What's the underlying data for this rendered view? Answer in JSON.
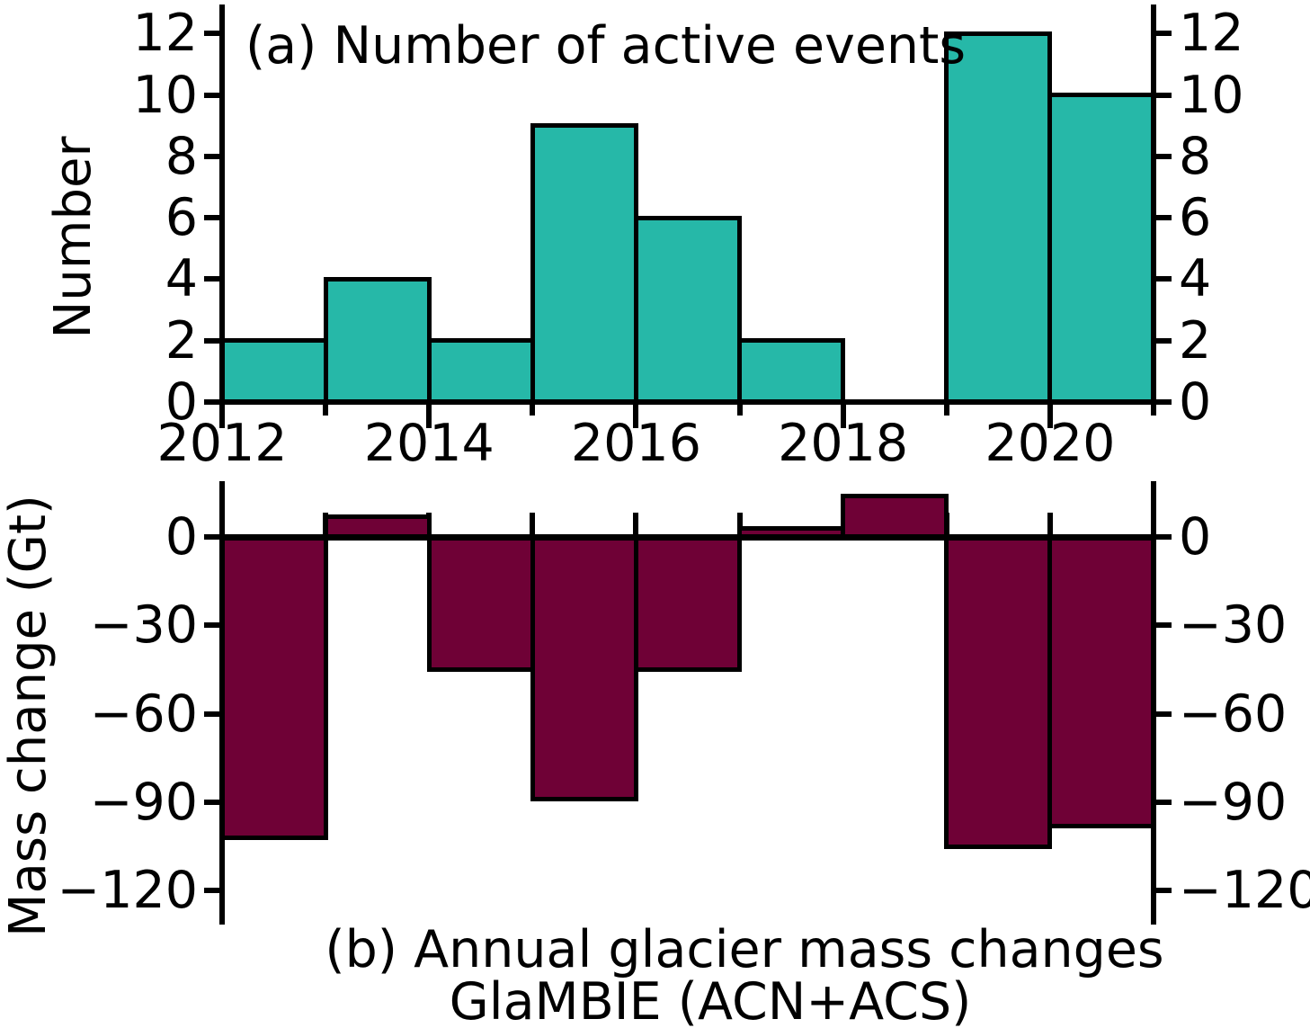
{
  "figure": {
    "background_color": "#ffffff",
    "text_color": "#000000"
  },
  "chart_data": [
    {
      "id": "panel-a",
      "type": "bar",
      "title": "(a) Number of active events",
      "ylabel": "Number",
      "bar_color": "#26b8a8",
      "bar_edge_color": "#000000",
      "categories": [
        2012,
        2013,
        2014,
        2015,
        2016,
        2017,
        2018,
        2019,
        2020
      ],
      "values": [
        2,
        4,
        2,
        9,
        6,
        2,
        0,
        12,
        10
      ],
      "bar_width_years": 1,
      "xlim": [
        2012,
        2021
      ],
      "ylim": [
        0,
        13
      ],
      "yticks": [
        0,
        2,
        4,
        6,
        8,
        10,
        12
      ],
      "ytick_labels": [
        "0",
        "2",
        "4",
        "6",
        "8",
        "10",
        "12"
      ],
      "ytick_sides": "both",
      "xtick_major_years": [
        2012,
        2014,
        2016,
        2018,
        2020
      ],
      "xtick_minor_years": [
        2013,
        2015,
        2017,
        2019,
        2021
      ],
      "xtick_labels": [
        "2012",
        "2014",
        "2016",
        "2018",
        "2020"
      ],
      "grid": false,
      "legend": null
    },
    {
      "id": "panel-b",
      "type": "bar",
      "caption_line1": "(b) Annual glacier mass changes",
      "caption_line2": "GlaMBIE (ACN+ACS)",
      "ylabel": "Mass change (Gt)",
      "bar_color": "#6f0136",
      "bar_edge_color": "#000000",
      "categories": [
        2012,
        2013,
        2014,
        2015,
        2016,
        2017,
        2018,
        2019,
        2020
      ],
      "values": [
        -102,
        7,
        -45,
        -89,
        -45,
        3,
        14,
        -105,
        -98
      ],
      "bar_width_years": 1,
      "xlim": [
        2012,
        2021
      ],
      "ylim": [
        -131,
        19
      ],
      "yticks": [
        0,
        -30,
        -60,
        -90,
        -120
      ],
      "ytick_labels": [
        "0",
        "−30",
        "−60",
        "−90",
        "−120"
      ],
      "ytick_sides": "both",
      "xtick_years": [
        2012,
        2013,
        2014,
        2015,
        2016,
        2017,
        2018,
        2019,
        2020,
        2021
      ],
      "grid": false,
      "legend": null
    }
  ]
}
